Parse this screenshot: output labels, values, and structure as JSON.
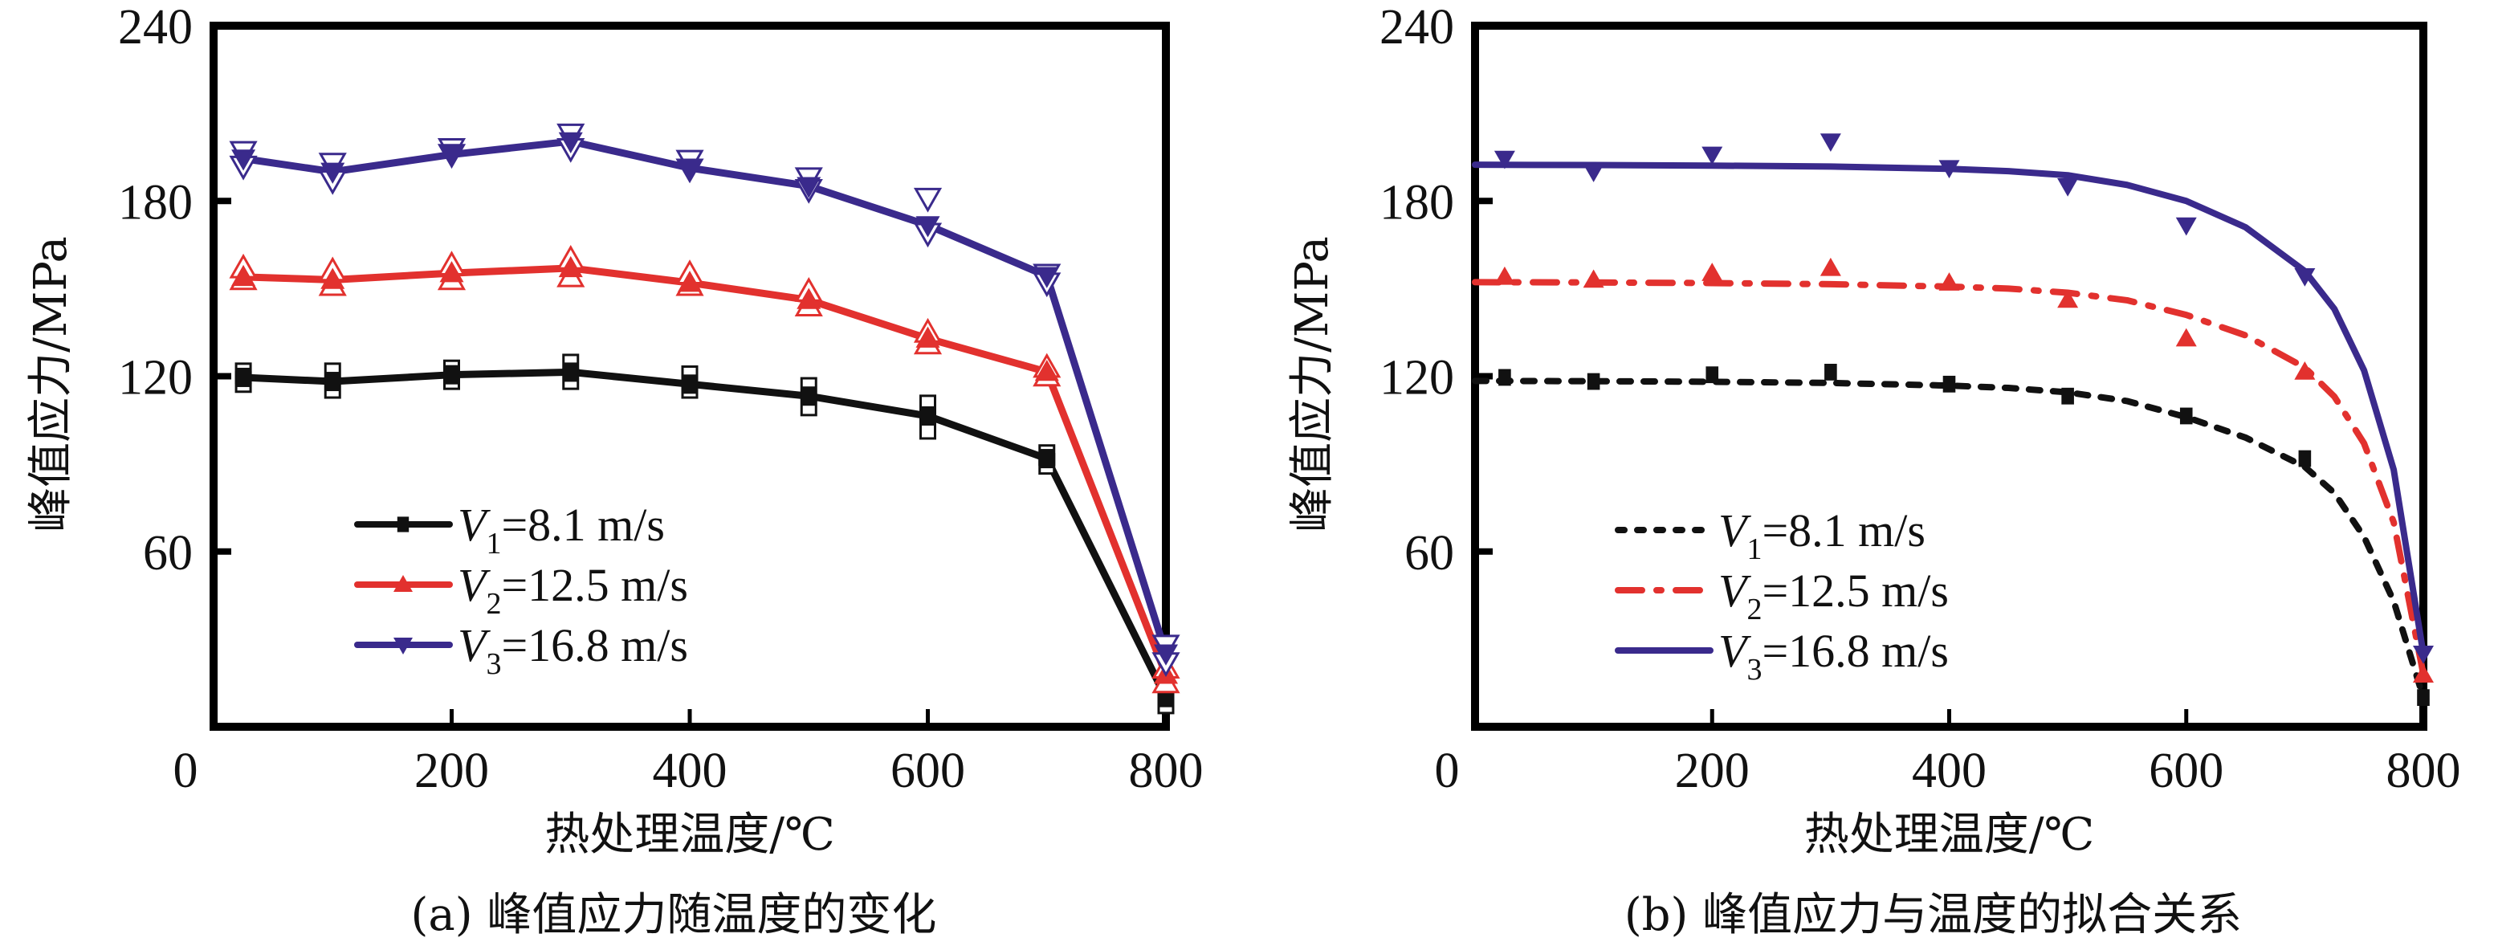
{
  "colors": {
    "V1": "#111111",
    "V2": "#e2312e",
    "V3": "#3a2a8c",
    "axis": "#000000"
  },
  "chart_data": [
    {
      "id": "a",
      "type": "line",
      "caption": "(a) 峰值应力随温度的变化",
      "xlabel": "热处理温度/℃",
      "ylabel": "峰值应力/MPa",
      "xlim": [
        0,
        800
      ],
      "ylim": [
        0,
        240
      ],
      "xticks": [
        0,
        200,
        400,
        600,
        800
      ],
      "xtick_labels": [
        "0",
        "200",
        "400",
        "600",
        "800"
      ],
      "yticks": [
        60,
        120,
        180,
        240
      ],
      "ytick_labels": [
        "60",
        "120",
        "180",
        "240"
      ],
      "grid": false,
      "legend_position": "center-left",
      "x": [
        25,
        100,
        200,
        300,
        400,
        500,
        600,
        700,
        800
      ],
      "series": [
        {
          "key": "V1",
          "name_var": "V",
          "name_sub": "1",
          "name_rest": "=8.1 m/s",
          "marker": "square",
          "line": "solid",
          "values": [
            119.6,
            118.2,
            120.5,
            121.4,
            117.3,
            113.2,
            106.4,
            91.8,
            10.0
          ],
          "range_low": [
            118,
            116,
            119,
            119,
            116,
            110,
            102,
            90,
            8
          ],
          "range_high": [
            121,
            121,
            122,
            124,
            120,
            116,
            110,
            93,
            12
          ]
        },
        {
          "key": "V2",
          "name_var": "V",
          "name_sub": "2",
          "name_rest": "=12.5 m/s",
          "marker": "triangle-up",
          "line": "solid",
          "values": [
            154.0,
            153.0,
            155.3,
            157.0,
            152.0,
            146.1,
            132.9,
            121.5,
            17.8
          ],
          "range_low": [
            153,
            151,
            153,
            154,
            151,
            144,
            131,
            120,
            15
          ],
          "range_high": [
            157,
            156,
            158,
            160,
            155,
            149,
            135,
            123,
            20
          ]
        },
        {
          "key": "V3",
          "name_var": "V",
          "name_sub": "3",
          "name_rest": "=16.8 m/s",
          "marker": "triangle-down",
          "line": "solid",
          "values": [
            194.5,
            190.0,
            195.9,
            200.4,
            191.3,
            185.1,
            171.7,
            154.3,
            25.1
          ],
          "range_low": [
            192,
            187,
            196,
            198,
            191,
            184,
            169,
            152,
            22
          ],
          "range_high": [
            197,
            193,
            198,
            203,
            194,
            188,
            181,
            155,
            28
          ]
        }
      ]
    },
    {
      "id": "b",
      "type": "scatter",
      "caption": "(b) 峰值应力与温度的拟合关系",
      "xlabel": "热处理温度/℃",
      "ylabel": "峰值应力/MPa",
      "xlim": [
        0,
        800
      ],
      "ylim": [
        0,
        240
      ],
      "xticks": [
        0,
        200,
        400,
        600,
        800
      ],
      "xtick_labels": [
        "0",
        "200",
        "400",
        "600",
        "800"
      ],
      "yticks": [
        60,
        120,
        180,
        240
      ],
      "ytick_labels": [
        "60",
        "120",
        "180",
        "240"
      ],
      "grid": false,
      "legend_position": "center-left",
      "x": [
        25,
        100,
        200,
        300,
        400,
        500,
        600,
        700,
        800
      ],
      "fit_x": [
        0,
        100,
        200,
        300,
        400,
        450,
        500,
        550,
        600,
        650,
        700,
        725,
        750,
        775,
        800
      ],
      "series": [
        {
          "key": "V1",
          "name_var": "V",
          "name_sub": "1",
          "name_rest": "=8.1 m/s",
          "marker": "square",
          "line": "dashed",
          "values": [
            119.6,
            118.2,
            120.5,
            121.4,
            117.3,
            113.2,
            106.4,
            91.8,
            10.0
          ],
          "fit": [
            118.4,
            118.3,
            118.1,
            117.7,
            116.8,
            116.0,
            114.5,
            111.5,
            106.0,
            99.0,
            89.0,
            80.0,
            65.0,
            43.0,
            10.0
          ]
        },
        {
          "key": "V2",
          "name_var": "V",
          "name_sub": "2",
          "name_rest": "=12.5 m/s",
          "marker": "triangle-up",
          "line": "dash-dot",
          "values": [
            154.0,
            153.0,
            155.3,
            157.0,
            152.0,
            146.1,
            132.9,
            121.5,
            17.8
          ],
          "fit": [
            152.2,
            152.1,
            151.9,
            151.5,
            150.7,
            150.0,
            148.6,
            146.0,
            141.0,
            134.0,
            123.0,
            113.0,
            97.0,
            70.0,
            18.0
          ]
        },
        {
          "key": "V3",
          "name_var": "V",
          "name_sub": "3",
          "name_rest": "=16.8 m/s",
          "marker": "triangle-down",
          "line": "solid",
          "values": [
            194.5,
            190.0,
            195.9,
            200.4,
            191.3,
            185.1,
            171.7,
            154.3,
            25.1
          ],
          "fit": [
            192.4,
            192.3,
            192.1,
            191.8,
            191.0,
            190.2,
            188.8,
            185.5,
            180.0,
            171.0,
            156.0,
            143.0,
            122.0,
            88.0,
            25.0
          ]
        }
      ]
    }
  ]
}
